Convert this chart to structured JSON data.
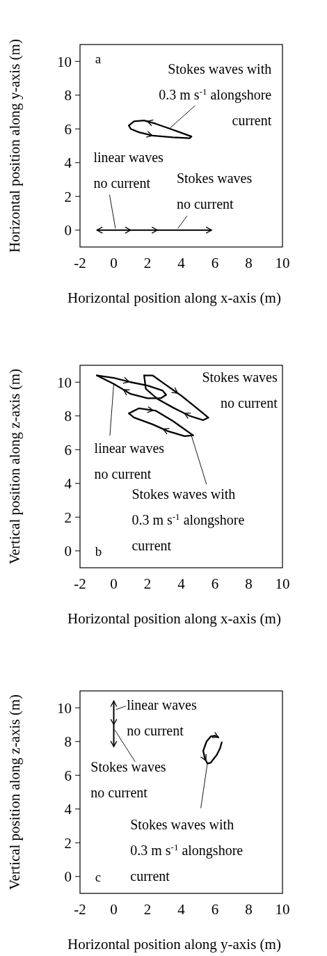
{
  "chart_data": [
    {
      "type": "line",
      "title": "a",
      "xlabel": "Horizontal position along x-axis (m)",
      "ylabel": "Horizontal position along y-axis (m)",
      "xlim": [
        -2,
        10
      ],
      "ylim": [
        -1,
        11
      ],
      "xticks": [
        -2,
        0,
        2,
        4,
        6,
        8,
        10
      ],
      "yticks": [
        0,
        2,
        4,
        6,
        8,
        10
      ],
      "annotations": [
        "linear waves no current",
        "Stokes waves no current",
        {
          "text": "Stokes waves with 0.3 m s$^{-1}$ alongshore current",
          "x": 3.3,
          "y": 6.02
        }
      ],
      "series": [
        {
          "color": "#000000",
          "x": [
            0.9,
            1.2,
            1.8,
            2.5,
            3.5,
            4.6
          ],
          "values": [
            6.2,
            6.45,
            6.5,
            6.3,
            5.95,
            5.55
          ]
        },
        {
          "color": "#000000",
          "x": [
            4.6,
            4.5,
            3.5,
            2.3,
            1.5,
            1.0,
            0.9
          ],
          "values": [
            5.55,
            5.45,
            5.5,
            5.6,
            5.8,
            6.0,
            6.2
          ]
        }
      ]
    },
    {
      "type": "line",
      "title": "b",
      "xlabel": "Horizontal position along x-axis (m)",
      "ylabel": "Vertical position along z-axis (m)",
      "xlim": [
        -2,
        10
      ],
      "ylim": [
        -1,
        11
      ],
      "xticks": [
        -2,
        0,
        2,
        4,
        6,
        8,
        10
      ],
      "yticks": [
        0,
        2,
        4,
        6,
        8,
        10
      ],
      "annotations": [
        {
          "text": "linear waves no current",
          "x": 0,
          "y": 9.9
        },
        "Stokes waves no current",
        {
          "text": "Stokes waves with 0.3 m s$^{-1}$ alongshore current",
          "x": 4.6,
          "y": 6.84
        }
      ],
      "series": [
        {
          "color": "#000000",
          "x": [
            -1,
            0,
            1,
            2,
            2.9,
            3.1
          ],
          "values": [
            10.4,
            10.25,
            10.0,
            9.8,
            9.5,
            9.25
          ]
        },
        {
          "color": "#000000",
          "x": [
            3.1,
            2.8,
            2,
            1,
            0,
            -0.8,
            -1
          ],
          "values": [
            9.25,
            9.05,
            9.05,
            9.3,
            9.9,
            10.3,
            10.4
          ]
        },
        {
          "color": "#000000",
          "x": [
            1.8,
            2.3,
            3.0,
            4.0,
            5.0,
            5.6
          ],
          "values": [
            10.4,
            10.4,
            9.9,
            9.2,
            8.4,
            7.9
          ]
        },
        {
          "color": "#000000",
          "x": [
            5.6,
            5.3,
            4.5,
            3.5,
            2.6,
            1.9,
            1.8
          ],
          "values": [
            7.9,
            7.75,
            8.0,
            8.5,
            9.0,
            9.6,
            10.4
          ]
        },
        {
          "color": "#000000",
          "x": [
            0.9,
            1.5,
            2.5,
            3.5,
            4.7
          ],
          "values": [
            8.15,
            8.45,
            8.3,
            7.7,
            6.85
          ]
        },
        {
          "color": "#000000",
          "x": [
            4.7,
            4.2,
            3.2,
            2.3,
            1.2,
            0.9
          ],
          "values": [
            6.85,
            6.8,
            7.1,
            7.5,
            7.9,
            8.15
          ]
        }
      ]
    },
    {
      "type": "line",
      "title": "c",
      "xlabel": "Horizontal position along y-axis (m)",
      "ylabel": "Vertical position along z-axis (m)",
      "xlim": [
        -2,
        10
      ],
      "ylim": [
        -1,
        11
      ],
      "xticks": [
        -2,
        0,
        2,
        4,
        6,
        8,
        10
      ],
      "yticks": [
        0,
        2,
        4,
        6,
        8,
        10
      ],
      "annotations": [
        "linear waves no current",
        "Stokes waves no current",
        {
          "text": "Stokes waves with 0.3 m s$^{-1}$ alongshore current",
          "x": 5.55,
          "y": 6.7
        }
      ],
      "series": [
        {
          "color": "#000000",
          "x": [
            5.3,
            5.5,
            5.75,
            6.0,
            6.2
          ],
          "values": [
            7.45,
            8.0,
            8.3,
            8.35,
            8.25
          ]
        },
        {
          "color": "#000000",
          "x": [
            6.4,
            6.3,
            6.1,
            5.75,
            5.55,
            5.4,
            5.3
          ],
          "values": [
            7.95,
            7.6,
            7.2,
            6.75,
            6.7,
            7.0,
            7.45
          ]
        }
      ]
    }
  ]
}
